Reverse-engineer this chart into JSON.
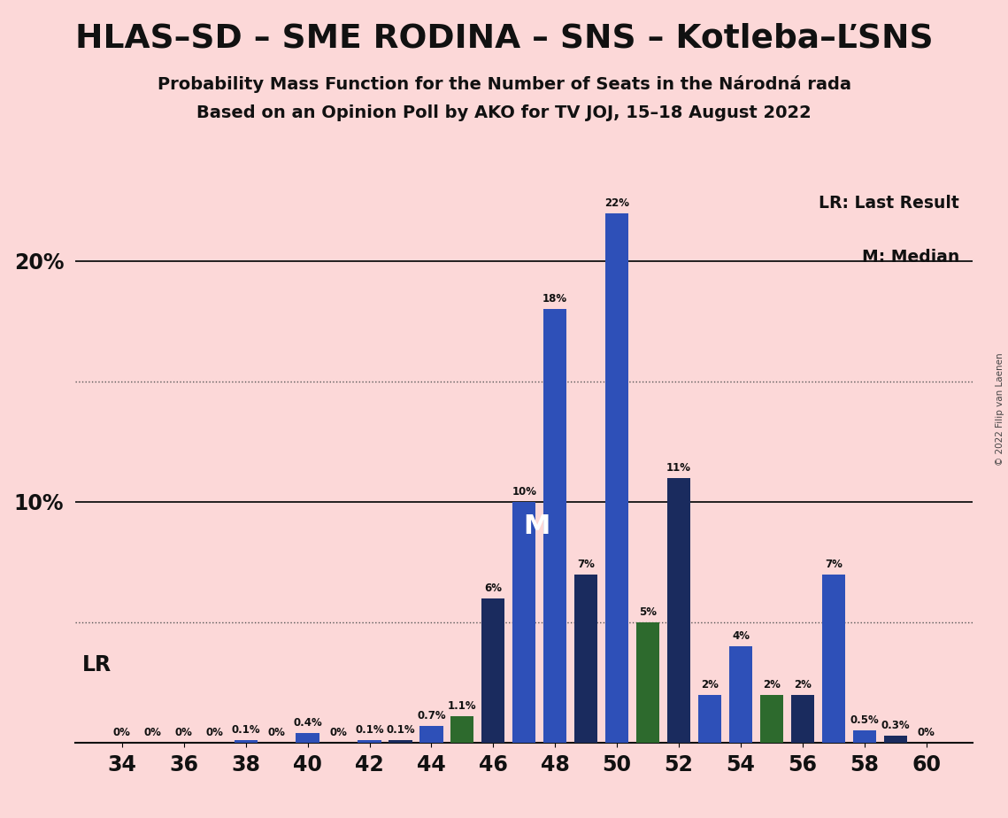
{
  "title": "HLAS–SD – SME RODINA – SNS – Kotleba–ĽSNS",
  "subtitle1": "Probability Mass Function for the Number of Seats in the Národná rada",
  "subtitle2": "Based on an Opinion Poll by AKO for TV JOJ, 15–18 August 2022",
  "copyright": "© 2022 Filip van Laenen",
  "legend_lr": "LR: Last Result",
  "legend_m": "M: Median",
  "background_color": "#fcd8d8",
  "seats": [
    34,
    35,
    36,
    37,
    38,
    39,
    40,
    41,
    42,
    43,
    44,
    45,
    46,
    47,
    48,
    49,
    50,
    51,
    52,
    53,
    54,
    55,
    56,
    57,
    58,
    59,
    60
  ],
  "probs": [
    0.0,
    0.0,
    0.0,
    0.0,
    0.1,
    0.0,
    0.4,
    0.0,
    0.1,
    0.1,
    0.7,
    1.1,
    6.0,
    10.0,
    18.0,
    7.0,
    22.0,
    5.0,
    11.0,
    2.0,
    4.0,
    2.0,
    2.0,
    7.0,
    0.5,
    0.3,
    0.0
  ],
  "colors": [
    "blue",
    "blue",
    "blue",
    "blue",
    "blue",
    "blue",
    "blue",
    "blue",
    "blue",
    "dark",
    "blue",
    "green",
    "dark",
    "blue",
    "blue",
    "dark",
    "blue",
    "green",
    "dark",
    "blue",
    "blue",
    "green",
    "dark",
    "blue",
    "blue",
    "dark",
    "blue"
  ],
  "bar_blue": "#2e50b8",
  "bar_dark": "#1a2b5e",
  "bar_green": "#2d6a2d",
  "median_seat": 48,
  "lr_seat": 40,
  "x_ticks": [
    34,
    36,
    38,
    40,
    42,
    44,
    46,
    48,
    50,
    52,
    54,
    56,
    58,
    60
  ],
  "ylim_max": 25,
  "solid_hlines": [
    10,
    20
  ],
  "dotted_hlines": [
    5,
    15
  ],
  "bar_labels": {
    "34": "0%",
    "35": "0%",
    "36": "0%",
    "37": "0%",
    "38": "0.1%",
    "39": "0%",
    "40": "0.4%",
    "41": "0%",
    "42": "0.1%",
    "43": "0.1%",
    "44": "0.7%",
    "45": "1.1%",
    "46": "6%",
    "47": "10%",
    "48": "18%",
    "49": "7%",
    "50": "22%",
    "51": "5%",
    "52": "11%",
    "53": "2%",
    "54": "4%",
    "55": "2%",
    "56": "2%",
    "57": "7%",
    "58": "0.5%",
    "59": "0.3%",
    "60": "0%"
  }
}
